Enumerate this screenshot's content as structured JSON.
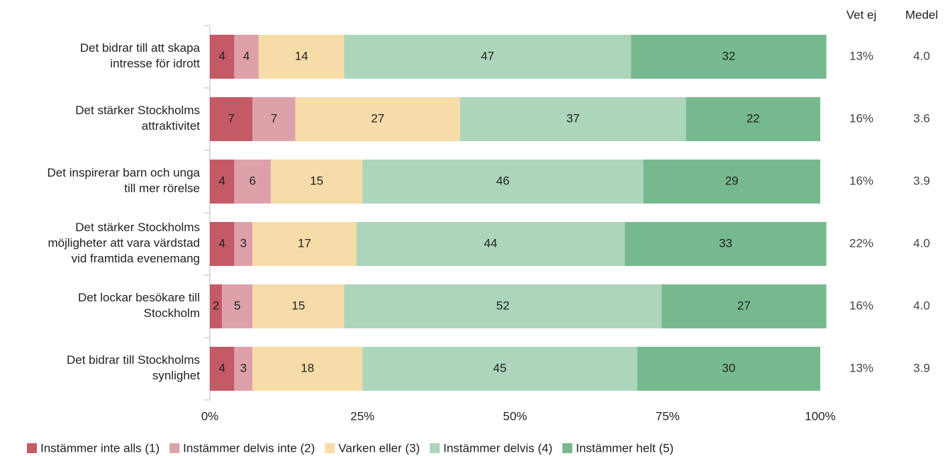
{
  "chart_data": {
    "type": "stacked_barh",
    "categories": [
      [
        "Det bidrar till att skapa",
        "intresse för idrott"
      ],
      [
        "Det stärker Stockholms",
        "attraktivitet"
      ],
      [
        "Det inspirerar barn och unga",
        "till mer rörelse"
      ],
      [
        "Det stärker Stockholms",
        "möjligheter att vara värdstad",
        "vid framtida evenemang"
      ],
      [
        "Det lockar besökare till",
        "Stockholm"
      ],
      [
        "Det bidrar till Stockholms",
        "synlighet"
      ]
    ],
    "series": [
      {
        "name": "Instämmer inte alls (1)",
        "color": "#c45a66",
        "values": [
          4,
          7,
          4,
          4,
          2,
          4
        ]
      },
      {
        "name": "Instämmer delvis inte (2)",
        "color": "#dea1aa",
        "values": [
          4,
          7,
          6,
          3,
          5,
          3
        ]
      },
      {
        "name": "Varken eller (3)",
        "color": "#f6dca8",
        "values": [
          14,
          27,
          15,
          17,
          15,
          18
        ]
      },
      {
        "name": "Instämmer delvis (4)",
        "color": "#acd5bc",
        "values": [
          47,
          37,
          46,
          44,
          52,
          45
        ]
      },
      {
        "name": "Instämmer helt (5)",
        "color": "#77b98f",
        "values": [
          32,
          22,
          29,
          33,
          27,
          30
        ]
      }
    ],
    "columns": [
      {
        "name": "Vet ej",
        "values": [
          13,
          16,
          16,
          22,
          16,
          13
        ],
        "value_labels": [
          "13%",
          "16%",
          "16%",
          "22%",
          "16%",
          "13%"
        ]
      },
      {
        "name": "Medel",
        "values": [
          4.0,
          3.6,
          3.9,
          4.0,
          4.0,
          3.9
        ],
        "value_labels": [
          "4.0",
          "3.6",
          "3.9",
          "4.0",
          "4.0",
          "3.9"
        ]
      }
    ],
    "xlim": [
      0,
      100
    ],
    "xticks": [
      {
        "value": 0,
        "label": "0%"
      },
      {
        "value": 25,
        "label": "25%"
      },
      {
        "value": 50,
        "label": "50%"
      },
      {
        "value": 75,
        "label": "75%"
      },
      {
        "value": 100,
        "label": "100%"
      }
    ],
    "legend": "bottom-left"
  }
}
